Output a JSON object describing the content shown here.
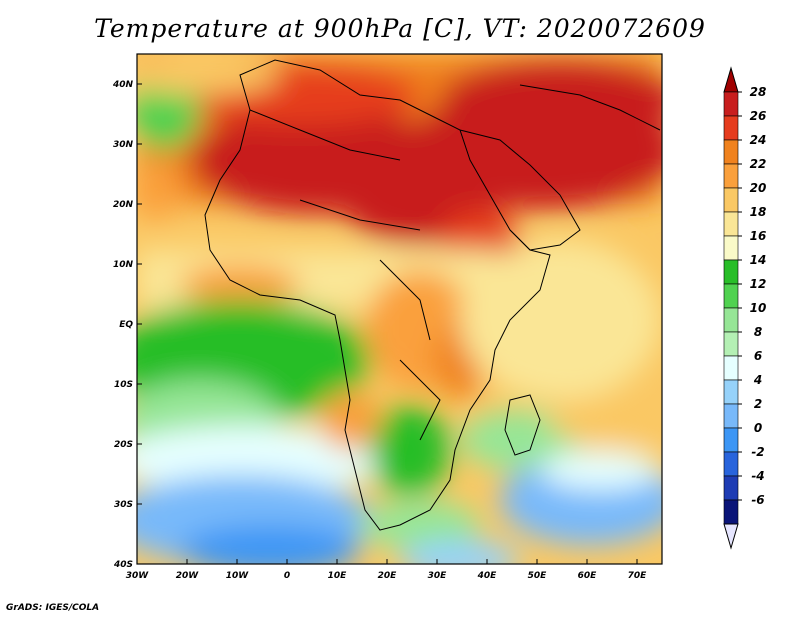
{
  "title": "Temperature at 900hPa [C], VT: 2020072609",
  "footer": "GrADS: IGES/COLA",
  "map": {
    "lon_range": [
      -30,
      75
    ],
    "lat_range": [
      -40,
      45
    ],
    "x_ticks": [
      "30W",
      "20W",
      "10W",
      "0",
      "10E",
      "20E",
      "30E",
      "40E",
      "50E",
      "60E",
      "70E"
    ],
    "x_tick_values": [
      -30,
      -20,
      -10,
      0,
      10,
      20,
      30,
      40,
      50,
      60,
      70
    ],
    "y_ticks": [
      "40N",
      "30N",
      "20N",
      "10N",
      "EQ",
      "10S",
      "20S",
      "30S",
      "40S"
    ],
    "y_tick_values": [
      40,
      30,
      20,
      10,
      0,
      -10,
      -20,
      -30,
      -40
    ]
  },
  "colorbar": {
    "levels": [
      "28",
      "26",
      "24",
      "22",
      "20",
      "18",
      "16",
      "14",
      "12",
      "10",
      "8",
      "6",
      "4",
      "2",
      "0",
      "-2",
      "-4",
      "-6"
    ],
    "colors": [
      "#a00000",
      "#c81e1e",
      "#e63c1e",
      "#f0821e",
      "#faa03c",
      "#fac864",
      "#fae696",
      "#fafac8",
      "#28be28",
      "#50d250",
      "#96e696",
      "#b4f0b4",
      "#e6ffff",
      "#96d2fa",
      "#78b9fa",
      "#3c96f5",
      "#2864dc",
      "#1e3cb4",
      "#0a1478",
      "#e6e6ff"
    ]
  }
}
